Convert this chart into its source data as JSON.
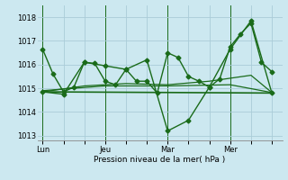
{
  "title": "Pression niveau de la mer( hPa )",
  "background_color": "#cce8f0",
  "grid_color": "#aaccd8",
  "line_color": "#1a6b1a",
  "ylim": [
    1012.8,
    1018.5
  ],
  "yticks": [
    1013,
    1014,
    1015,
    1016,
    1017,
    1018
  ],
  "x_tick_labels": [
    "Lun",
    "Jeu",
    "Mar",
    "Mer"
  ],
  "x_tick_positions": [
    0,
    12,
    24,
    36
  ],
  "xlim": [
    -1,
    46
  ],
  "series": [
    {
      "x": [
        0,
        2,
        4,
        6,
        8,
        10,
        12,
        14,
        16,
        18,
        20,
        22,
        24,
        26,
        28,
        30,
        32,
        34,
        36,
        38,
        40,
        42,
        44
      ],
      "y": [
        1016.65,
        1015.6,
        1014.85,
        1015.05,
        1016.1,
        1016.05,
        1015.3,
        1015.15,
        1015.8,
        1015.3,
        1015.3,
        1014.8,
        1016.5,
        1016.3,
        1015.5,
        1015.3,
        1015.05,
        1015.4,
        1016.75,
        1017.3,
        1017.75,
        1016.1,
        1015.7
      ],
      "marker": "D",
      "markersize": 2.5,
      "linewidth": 1.0
    },
    {
      "x": [
        0,
        4,
        8,
        12,
        16,
        20,
        24,
        28,
        32,
        36,
        40,
        44
      ],
      "y": [
        1014.85,
        1014.75,
        1016.1,
        1015.95,
        1015.8,
        1016.2,
        1013.2,
        1013.65,
        1015.05,
        1016.65,
        1017.85,
        1014.8
      ],
      "marker": "D",
      "markersize": 2.5,
      "linewidth": 1.0
    },
    {
      "x": [
        0,
        44
      ],
      "y": [
        1014.85,
        1014.8
      ],
      "marker": null,
      "linewidth": 1.2
    },
    {
      "x": [
        0,
        12,
        24,
        36,
        44
      ],
      "y": [
        1014.9,
        1015.1,
        1015.1,
        1015.15,
        1014.82
      ],
      "marker": null,
      "linewidth": 0.9
    },
    {
      "x": [
        0,
        8,
        16,
        24,
        32,
        40,
        44
      ],
      "y": [
        1014.85,
        1015.1,
        1015.2,
        1015.15,
        1015.3,
        1015.55,
        1014.82
      ],
      "marker": null,
      "linewidth": 0.9
    }
  ],
  "vlines_x": [
    0,
    12,
    24,
    36
  ],
  "ylabel_fontsize": 6.5,
  "tick_fontsize": 6.0
}
